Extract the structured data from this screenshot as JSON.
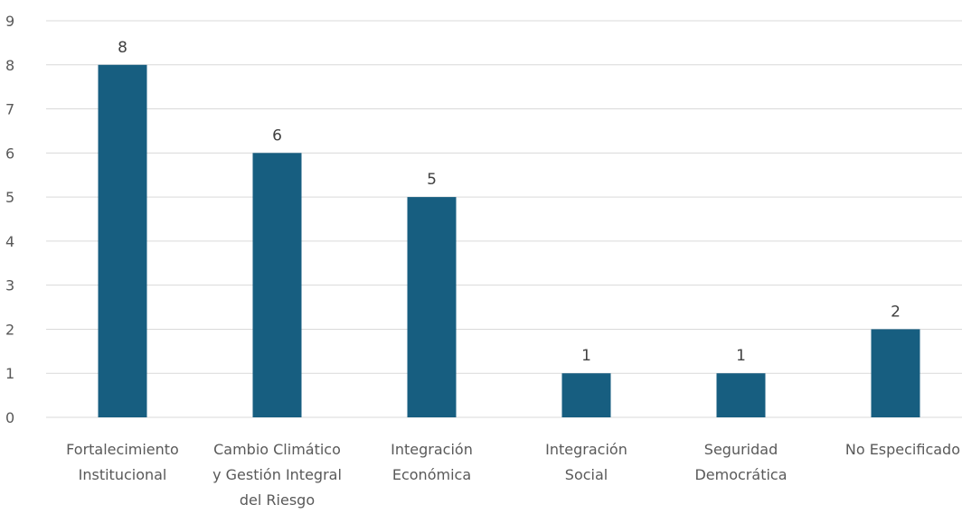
{
  "chart_data": {
    "type": "bar",
    "categories": [
      [
        "Fortalecimiento",
        "Institucional"
      ],
      [
        "Cambio Climático",
        "y Gestión Integral",
        "del Riesgo"
      ],
      [
        "Integración",
        "Económica"
      ],
      [
        "Integración",
        "Social"
      ],
      [
        "Seguridad",
        "Democrática"
      ],
      [
        "No Especificado"
      ]
    ],
    "values": [
      8,
      6,
      5,
      1,
      1,
      2
    ],
    "data_labels": [
      "8",
      "6",
      "5",
      "1",
      "1",
      "2"
    ],
    "ylim": [
      0,
      9
    ],
    "yticks": [
      "0",
      "1",
      "2",
      "3",
      "4",
      "5",
      "6",
      "7",
      "8",
      "9"
    ],
    "title": "",
    "xlabel": "",
    "ylabel": "",
    "grid": true,
    "legend": "none",
    "bar_color": "#175e80"
  }
}
